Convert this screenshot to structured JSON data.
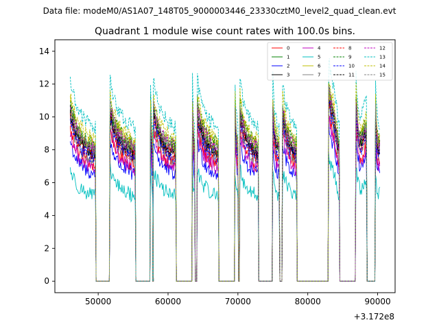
{
  "suptitle": "Data file: modeM0/AS1A07_148T05_9000003446_23330cztM0_level2_quad_clean.evt",
  "chart_data": {
    "type": "line",
    "title": "Quadrant 1 module wise count rates with 100.0s bins.",
    "xlabel": "",
    "ylabel": "",
    "x_offset_label": "+3.172e8",
    "xlim": [
      43800,
      92500
    ],
    "ylim": [
      -0.7,
      14.7
    ],
    "x_ticks": [
      50000,
      60000,
      70000,
      80000,
      90000
    ],
    "x_tick_labels": [
      "50000",
      "60000",
      "70000",
      "80000",
      "90000"
    ],
    "y_ticks": [
      0,
      2,
      4,
      6,
      8,
      10,
      12,
      14
    ],
    "y_tick_labels": [
      "0",
      "2",
      "4",
      "6",
      "8",
      "10",
      "12",
      "14"
    ],
    "legend_position": "top-right",
    "legend_columns": 4,
    "bin_seconds": 100,
    "active_intervals": [
      [
        46000,
        49600
      ],
      [
        51700,
        55300
      ],
      [
        57500,
        57800
      ],
      [
        57900,
        61100
      ],
      [
        63500,
        63800
      ],
      [
        64200,
        67200
      ],
      [
        69600,
        70000
      ],
      [
        70300,
        72900
      ],
      [
        75000,
        75900
      ],
      [
        76400,
        78400
      ],
      [
        83000,
        84500
      ],
      [
        86900,
        88400
      ],
      [
        89700,
        90300
      ]
    ],
    "series": [
      {
        "name": "0",
        "color": "#ff0000",
        "linestyle": "solid",
        "mean_rate": 7.6
      },
      {
        "name": "1",
        "color": "#008000",
        "linestyle": "solid",
        "mean_rate": 8.6
      },
      {
        "name": "2",
        "color": "#0000ff",
        "linestyle": "solid",
        "mean_rate": 7.0
      },
      {
        "name": "3",
        "color": "#000000",
        "linestyle": "solid",
        "mean_rate": 8.3
      },
      {
        "name": "4",
        "color": "#bf00bf",
        "linestyle": "solid",
        "mean_rate": 7.4
      },
      {
        "name": "5",
        "color": "#00bfbf",
        "linestyle": "solid",
        "mean_rate": 5.6
      },
      {
        "name": "6",
        "color": "#bfbf00",
        "linestyle": "solid",
        "mean_rate": 8.9
      },
      {
        "name": "7",
        "color": "#808080",
        "linestyle": "solid",
        "mean_rate": 8.0
      },
      {
        "name": "8",
        "color": "#ff0000",
        "linestyle": "dashed",
        "mean_rate": 8.2
      },
      {
        "name": "9",
        "color": "#008000",
        "linestyle": "dashed",
        "mean_rate": 9.0
      },
      {
        "name": "10",
        "color": "#0000ff",
        "linestyle": "dashed",
        "mean_rate": 8.1
      },
      {
        "name": "11",
        "color": "#000000",
        "linestyle": "dashed",
        "mean_rate": 8.5
      },
      {
        "name": "12",
        "color": "#bf00bf",
        "linestyle": "dashed",
        "mean_rate": 8.8
      },
      {
        "name": "13",
        "color": "#00bfbf",
        "linestyle": "dashed",
        "mean_rate": 10.1
      },
      {
        "name": "14",
        "color": "#bfbf00",
        "linestyle": "dashed",
        "mean_rate": 9.3
      },
      {
        "name": "15",
        "color": "#808080",
        "linestyle": "dashed",
        "mean_rate": 8.7
      }
    ]
  }
}
